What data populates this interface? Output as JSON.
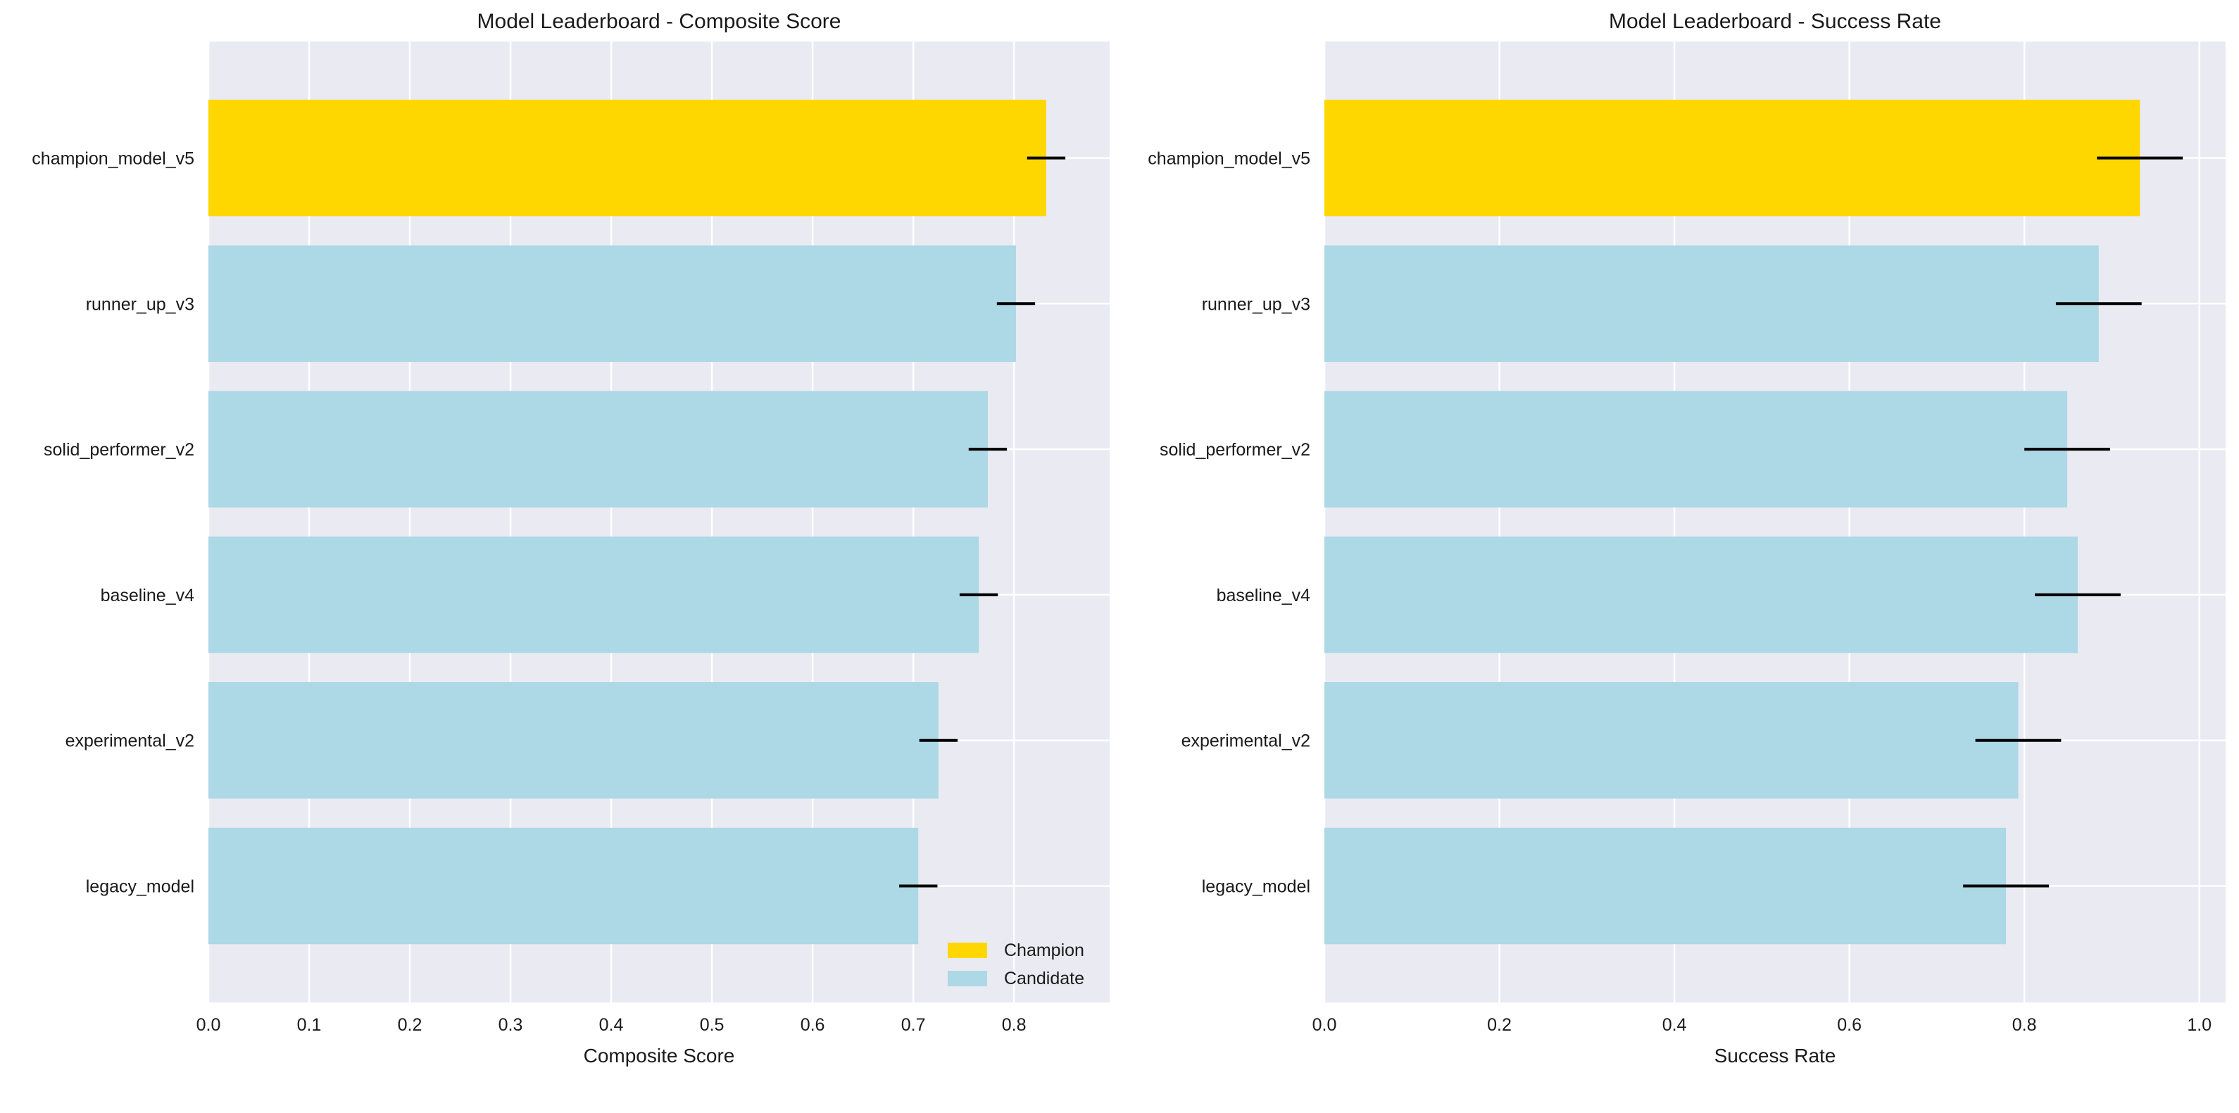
{
  "chart_data": [
    {
      "type": "bar",
      "orientation": "horizontal",
      "title": "Model Leaderboard - Composite Score",
      "xlabel": "Composite Score",
      "ylabel": "",
      "xlim": [
        0,
        0.895
      ],
      "xticks": [
        "0.0",
        "0.1",
        "0.2",
        "0.3",
        "0.4",
        "0.5",
        "0.6",
        "0.7",
        "0.8"
      ],
      "xtick_values": [
        0,
        0.1,
        0.2,
        0.3,
        0.4,
        0.5,
        0.6,
        0.7,
        0.8
      ],
      "grid": true,
      "categories": [
        "champion_model_v5",
        "runner_up_v3",
        "solid_performer_v2",
        "baseline_v4",
        "experimental_v2",
        "legacy_model"
      ],
      "values": [
        0.832,
        0.802,
        0.774,
        0.765,
        0.725,
        0.705
      ],
      "errors": [
        0.019,
        0.019,
        0.019,
        0.019,
        0.019,
        0.019
      ],
      "roles": [
        "Champion",
        "Candidate",
        "Candidate",
        "Candidate",
        "Candidate",
        "Candidate"
      ],
      "legend": {
        "placement": "bottom-right",
        "entries": [
          {
            "label": "Champion",
            "color": "#FFD700"
          },
          {
            "label": "Candidate",
            "color": "#ADD8E6"
          }
        ]
      }
    },
    {
      "type": "bar",
      "orientation": "horizontal",
      "title": "Model Leaderboard - Success Rate",
      "xlabel": "Success Rate",
      "ylabel": "",
      "xlim": [
        0,
        1.03
      ],
      "xticks": [
        "0.0",
        "0.2",
        "0.4",
        "0.6",
        "0.8",
        "1.0"
      ],
      "xtick_values": [
        0,
        0.2,
        0.4,
        0.6,
        0.8,
        1.0
      ],
      "grid": true,
      "categories": [
        "champion_model_v5",
        "runner_up_v3",
        "solid_performer_v2",
        "baseline_v4",
        "experimental_v2",
        "legacy_model"
      ],
      "values": [
        0.932,
        0.885,
        0.849,
        0.861,
        0.793,
        0.779
      ],
      "errors": [
        0.049,
        0.049,
        0.049,
        0.049,
        0.049,
        0.049
      ],
      "roles": [
        "Champion",
        "Candidate",
        "Candidate",
        "Candidate",
        "Candidate",
        "Candidate"
      ]
    }
  ],
  "colors": {
    "champion": "#FFD700",
    "candidate": "#ADD8E6",
    "plot_background": "#EAEAF2",
    "grid": "#FFFFFF",
    "error_bar": "#000000"
  }
}
